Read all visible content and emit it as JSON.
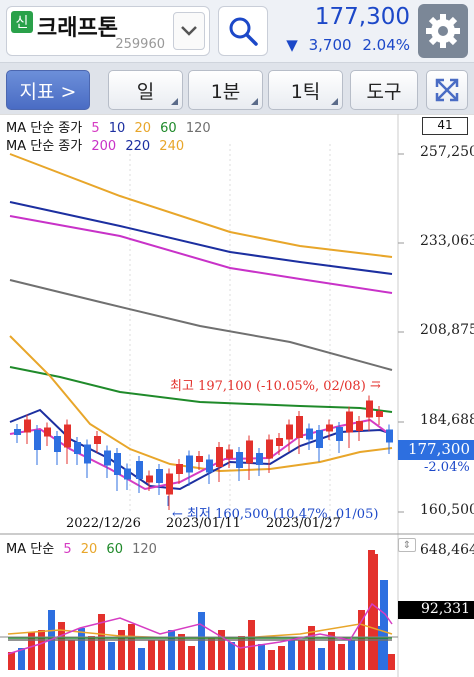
{
  "header": {
    "badge": "신",
    "stock_name": "크래프톤",
    "stock_code": "259960",
    "price": "177,300",
    "change_arrow": "▼",
    "change_value": "3,700",
    "change_pct": "2.04%",
    "price_color": "#1c48c8"
  },
  "toolbar": {
    "indicator_label": "지표  >",
    "day_label": "일",
    "minute_label": "1분",
    "tick_label": "1틱",
    "tools_label": "도구"
  },
  "price_chart": {
    "ma_line1": {
      "label": "MA 단순 종가",
      "periods": [
        "5",
        "10",
        "20",
        "60",
        "120"
      ]
    },
    "ma_line2": {
      "label": "MA 단순 종가",
      "periods": [
        "200",
        "220",
        "240"
      ]
    },
    "scale_box": "41",
    "y_labels": [
      "257,250",
      "233,063",
      "208,875",
      "184,688",
      "160,500"
    ],
    "current_price": "177,300",
    "current_pct": "-2.04%",
    "high_note": "최고 197,100 (-10.05%, 02/08) →",
    "low_note": "← 최저 160,500 (10.47%, 01/05)",
    "dates": [
      "2022/12/26",
      "2023/01/11",
      "2023/01/27"
    ]
  },
  "volume_chart": {
    "legend_label": "MA 단순",
    "periods": [
      "5",
      "20",
      "60",
      "120"
    ],
    "max_label": "648,464",
    "current_volume": "92,331"
  },
  "colors": {
    "up": "#e3312c",
    "down": "#2d6fe0",
    "ma5": "#d63cc3",
    "ma10": "#1c2fa0",
    "ma20": "#e8a62a",
    "ma60": "#1f8a2a",
    "ma120": "#707070",
    "ma200": "#c832c8",
    "ma220": "#1c2fa0",
    "ma240": "#e8a62a"
  }
}
